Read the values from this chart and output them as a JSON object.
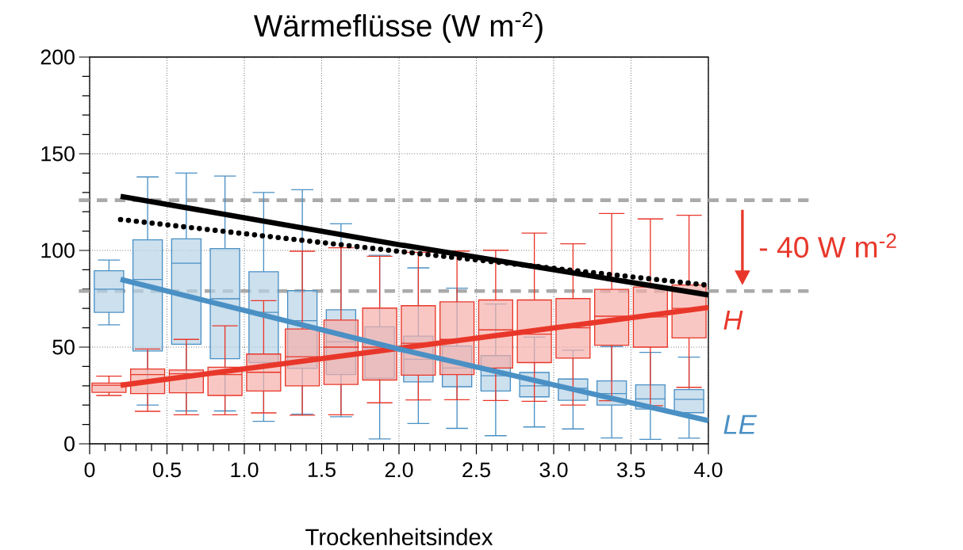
{
  "chart_data": {
    "type": "box",
    "title": "Wärmeflüsse (W m$^{-2}$)",
    "xlabel": "Trockenheitsindex",
    "xlim": [
      0,
      4
    ],
    "ylim": [
      0,
      200
    ],
    "xticks": [
      0,
      0.5,
      {
        "value": 1,
        "label": "1.0"
      },
      {
        "value": 1.5,
        "label": "1.5"
      },
      {
        "value": 2,
        "label": "2.0"
      },
      {
        "value": 2.5,
        "label": "2.5"
      },
      {
        "value": 3,
        "label": "3.0"
      },
      {
        "value": 3.5,
        "label": "3.5"
      },
      {
        "value": 4,
        "label": "4.0"
      }
    ],
    "yticks": [
      0,
      50,
      100,
      150,
      200
    ],
    "grid": true,
    "series": [
      {
        "name": "LE",
        "color": "#4a90c4",
        "x": [
          0.125,
          0.375,
          0.625,
          0.875,
          1.125,
          1.375,
          1.625,
          1.875,
          2.125,
          2.375,
          2.625,
          2.875,
          3.125,
          3.375,
          3.625,
          3.875
        ],
        "boxes": [
          {
            "low": 61.5,
            "q1": 68,
            "median": 80,
            "q3": 89.5,
            "high": 95
          },
          {
            "low": 20,
            "q1": 48,
            "median": 85,
            "q3": 105.5,
            "high": 138
          },
          {
            "low": 17,
            "q1": 51.5,
            "median": 93.4,
            "q3": 106,
            "high": 140
          },
          {
            "low": 17,
            "q1": 44,
            "median": 75,
            "q3": 101,
            "high": 138.5
          },
          {
            "low": 11.6,
            "q1": 42,
            "median": 68,
            "q3": 89,
            "high": 130
          },
          {
            "low": 15.3,
            "q1": 39,
            "median": 63.7,
            "q3": 79.2,
            "high": 131.4
          },
          {
            "low": 14,
            "q1": 35.8,
            "median": 52.7,
            "q3": 69.3,
            "high": 113.8
          },
          {
            "low": 2.5,
            "q1": 34,
            "median": 49.2,
            "q3": 60.5,
            "high": 97.5
          },
          {
            "low": 10.5,
            "q1": 32,
            "median": 43.7,
            "q3": 55.7,
            "high": 91
          },
          {
            "low": 8,
            "q1": 29.5,
            "median": 39.2,
            "q3": 50.5,
            "high": 80.5
          },
          {
            "low": 4.2,
            "q1": 27.3,
            "median": 35.2,
            "q3": 45.6,
            "high": 72.3
          },
          {
            "low": 8.7,
            "q1": 24.3,
            "median": 30,
            "q3": 36.9,
            "high": 55.2
          },
          {
            "low": 7.7,
            "q1": 22.5,
            "median": 28.7,
            "q3": 33.5,
            "high": 48.4
          },
          {
            "low": 3,
            "q1": 20,
            "median": 26,
            "q3": 32.5,
            "high": 50.3
          },
          {
            "low": 2.3,
            "q1": 18,
            "median": 23.2,
            "q3": 30.5,
            "high": 47.3
          },
          {
            "low": 2.9,
            "q1": 16.1,
            "median": 23,
            "q3": 28,
            "high": 44.8
          }
        ]
      },
      {
        "name": "H",
        "color": "#e8372a",
        "x": [
          0.125,
          0.375,
          0.625,
          0.875,
          1.125,
          1.375,
          1.625,
          1.875,
          2.125,
          2.375,
          2.625,
          2.875,
          3.125,
          3.375,
          3.625,
          3.875
        ],
        "boxes": [
          {
            "low": 25,
            "q1": 26.6,
            "median": 30.3,
            "q3": 31.4,
            "high": 35
          },
          {
            "low": 16.8,
            "q1": 26,
            "median": 35.8,
            "q3": 38.7,
            "high": 49
          },
          {
            "low": 15,
            "q1": 26.4,
            "median": 36.2,
            "q3": 38.2,
            "high": 54
          },
          {
            "low": 15,
            "q1": 25,
            "median": 35.8,
            "q3": 39.6,
            "high": 61
          },
          {
            "low": 16,
            "q1": 27.3,
            "median": 37,
            "q3": 46.4,
            "high": 74
          },
          {
            "low": 14.8,
            "q1": 30,
            "median": 45,
            "q3": 59.4,
            "high": 99.6
          },
          {
            "low": 15,
            "q1": 30.7,
            "median": 50,
            "q3": 64,
            "high": 101.4
          },
          {
            "low": 21.2,
            "q1": 33,
            "median": 50,
            "q3": 70.2,
            "high": 97
          },
          {
            "low": 22.7,
            "q1": 35.5,
            "median": 52,
            "q3": 71.4,
            "high": 99
          },
          {
            "low": 22.8,
            "q1": 35.8,
            "median": 54,
            "q3": 73.4,
            "high": 99.7
          },
          {
            "low": 22.4,
            "q1": 39.2,
            "median": 58.9,
            "q3": 74.4,
            "high": 100.1
          },
          {
            "low": 22,
            "q1": 42,
            "median": 56.7,
            "q3": 74.4,
            "high": 109
          },
          {
            "low": 20,
            "q1": 44.3,
            "median": 60,
            "q3": 75.1,
            "high": 103.4
          },
          {
            "low": 22.3,
            "q1": 51,
            "median": 66,
            "q3": 79.9,
            "high": 119.1
          },
          {
            "low": 19.7,
            "q1": 50,
            "median": 65.6,
            "q3": 81.1,
            "high": 116.3
          },
          {
            "low": 29.2,
            "q1": 54.8,
            "median": 70,
            "q3": 82.1,
            "high": 118.2
          }
        ]
      },
      {
        "type": "line",
        "color": "#e8372a",
        "x": [
          0.2,
          4.0
        ],
        "values": [
          30.3,
          70.5
        ]
      },
      {
        "type": "line",
        "color": "#4a90c4",
        "x": [
          0.2,
          2.0,
          4.0
        ],
        "values": [
          85,
          49,
          12
        ]
      },
      {
        "type": "line",
        "color": "#000000",
        "x": [
          0.2,
          2.0,
          4.0
        ],
        "values": [
          128,
          103,
          77
        ]
      },
      {
        "type": "line",
        "color": "#000000",
        "line_style": "dotted",
        "x": [
          0.2,
          2.0,
          4.0
        ],
        "values": [
          116,
          99.5,
          82
        ]
      }
    ],
    "ref_lines": [
      {
        "axis": "y",
        "value": 126,
        "color": "#aaaaaa",
        "line_style": "dashed"
      },
      {
        "axis": "y",
        "value": 79,
        "color": "#aaaaaa",
        "line_style": "dashed"
      }
    ],
    "annotations": [
      "- 40 W m$^{-2}$"
    ]
  }
}
